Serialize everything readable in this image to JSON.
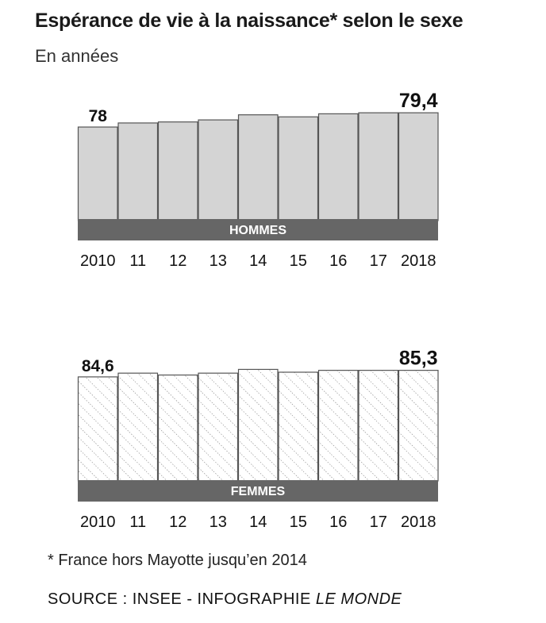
{
  "title": "Espérance de vie à la naissance* selon le sexe",
  "subtitle": "En années",
  "footnote": "* France hors Mayotte jusqu’en 2014",
  "source": {
    "prefix": "SOURCE : INSEE - INFOGRAPHIE ",
    "brand": "LE MONDE"
  },
  "colors": {
    "bar_fill_men": "#d4d4d4",
    "bar_stroke": "#555555",
    "label_band": "#666666",
    "hatch": "#777777"
  },
  "chart_data": [
    {
      "type": "bar",
      "title": "HOMMES",
      "categories": [
        "2010",
        "11",
        "12",
        "13",
        "14",
        "15",
        "16",
        "17",
        "2018"
      ],
      "values": [
        78.0,
        78.4,
        78.5,
        78.7,
        79.2,
        79.0,
        79.3,
        79.4,
        79.4
      ],
      "value_labels": [
        {
          "index": 0,
          "text": "78"
        },
        {
          "index": 8,
          "text": "79,4"
        }
      ],
      "xlabel": "",
      "ylabel": "",
      "ylim": [
        68.8,
        80.5
      ]
    },
    {
      "type": "bar",
      "title": "FEMMES",
      "categories": [
        "2010",
        "11",
        "12",
        "13",
        "14",
        "15",
        "16",
        "17",
        "2018"
      ],
      "values": [
        84.6,
        85.0,
        84.8,
        85.0,
        85.4,
        85.1,
        85.3,
        85.3,
        85.3
      ],
      "value_labels": [
        {
          "index": 0,
          "text": "84,6"
        },
        {
          "index": 8,
          "text": "85,3"
        }
      ],
      "xlabel": "",
      "ylabel": "",
      "ylim": [
        73.5,
        86.2
      ]
    }
  ]
}
